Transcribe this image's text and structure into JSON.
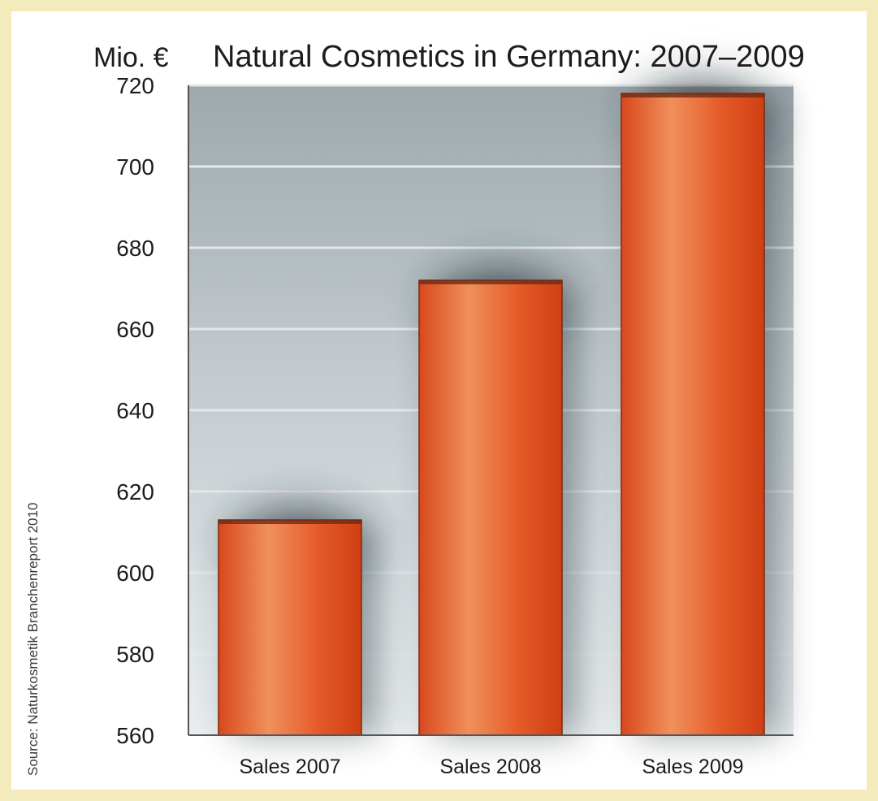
{
  "chart_data": {
    "type": "bar",
    "title": "Natural Cosmetics in Germany: 2007–2009",
    "ylabel": "Mio. €",
    "xlabel": "",
    "categories": [
      "Sales 2007",
      "Sales 2008",
      "Sales 2009"
    ],
    "values": [
      613,
      672,
      718
    ],
    "ylim": [
      560,
      720
    ],
    "yticks": [
      560,
      580,
      600,
      620,
      640,
      660,
      680,
      700,
      720
    ],
    "grid": true,
    "source": "Source: Naturkosmetik Branchenreport 2010",
    "colors": {
      "bar": "#e2582a",
      "bar_highlight": "#f08f5a",
      "plot_background": "#a9b3b8",
      "page_border": "#f4ebbd"
    }
  }
}
